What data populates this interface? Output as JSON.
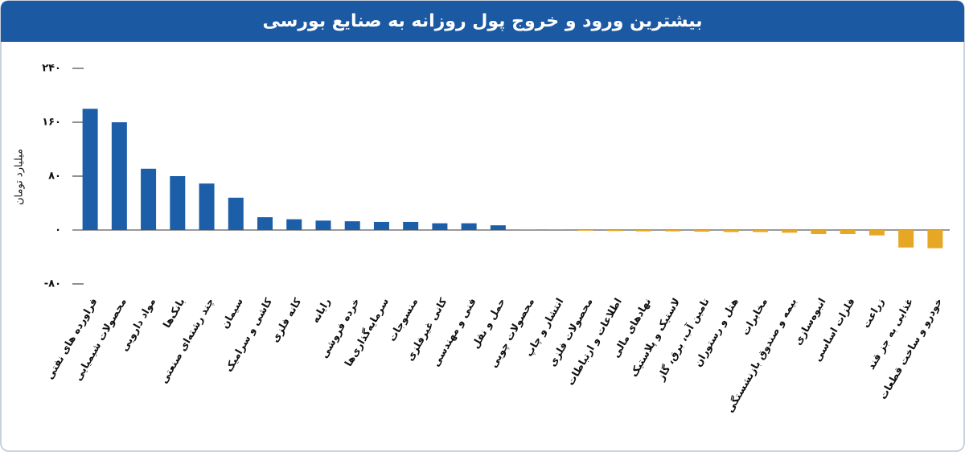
{
  "chart_data": {
    "type": "bar",
    "title": "بیشترین ورود و خروج پول روزانه به صنایع بورسی",
    "y_label": "میلیارد تومان",
    "categories": [
      "فراورده های نفتی",
      "محصولات شیمیایی",
      "مواد دارویی",
      "بانک‌ها",
      "چند رشته‌ای صنعتی",
      "سیمان",
      "کاشی و سرامیک",
      "کانه فلزی",
      "رایانه",
      "خرده فروشی",
      "سرمایه‌گذاری‌ها",
      "منسوجات",
      "کانی غیرفلزی",
      "فنی و مهندسی",
      "حمل و نقل",
      "محصولات چوبی",
      "انتشار و چاپ",
      "محصولات فلزی",
      "اطلاعات و ارتباطات",
      "نهادهای مالی",
      "لاستیک و پلاستیک",
      "تامین آب، برق، گاز",
      "هتل و رستوران",
      "مخابرات",
      "بیمه و صندوق بازنشستگی",
      "انبوه‌سازی",
      "فلزات اساسی",
      "زراعت",
      "غذایی به جز قند",
      "خودرو و ساخت قطعات"
    ],
    "values": [
      180,
      160,
      91,
      80,
      69,
      48,
      19,
      16,
      14,
      13,
      12,
      12,
      10,
      10,
      7,
      0.5,
      0.3,
      -1,
      -1.5,
      -2,
      -2,
      -2.5,
      -3,
      -3,
      -4,
      -6,
      -6,
      -8,
      -26,
      -27
    ],
    "positive_color": "#1c5ea8",
    "negative_color": "#e6a824",
    "ylim": [
      -80,
      240
    ],
    "yticks": [
      {
        "value": -80,
        "label": "-۸۰"
      },
      {
        "value": 0,
        "label": "۰"
      },
      {
        "value": 80,
        "label": "۸۰"
      },
      {
        "value": 160,
        "label": "۱۶۰"
      },
      {
        "value": 240,
        "label": "۲۴۰"
      }
    ]
  }
}
